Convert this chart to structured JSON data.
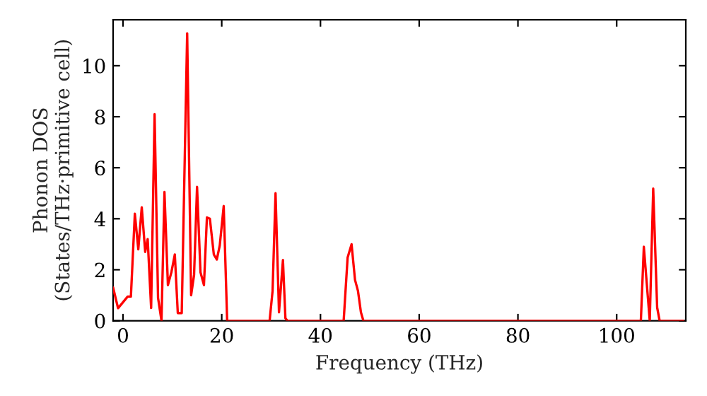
{
  "chart_data": {
    "type": "line",
    "xlabel": "Frequency (THz)",
    "ylabel": "Phonon DOS\n(States/THz·primitive cell)",
    "x": [
      -2,
      -1.0,
      0.95,
      1.6,
      2.4,
      3.1,
      3.8,
      4.5,
      5.0,
      5.7,
      6.4,
      7.1,
      7.8,
      8.4,
      9.1,
      9.8,
      10.5,
      11.1,
      11.9,
      13.0,
      13.8,
      14.4,
      15.0,
      15.7,
      16.4,
      17.0,
      17.6,
      18.4,
      19.0,
      19.6,
      20.4,
      21.1,
      29.7,
      30.3,
      30.9,
      31.6,
      32.4,
      32.9,
      33.3,
      44.7,
      45.5,
      46.3,
      47.0,
      47.6,
      48.2,
      48.7,
      104.9,
      105.5,
      106.7,
      107.4,
      108.2,
      108.7,
      113.5
    ],
    "series": [
      {
        "color": "#ff0000",
        "values": [
          1.3,
          0.49,
          0.95,
          0.95,
          4.2,
          2.8,
          4.45,
          2.7,
          3.2,
          0.5,
          8.1,
          0.9,
          0,
          5.05,
          1.4,
          1.9,
          2.6,
          0.3,
          0.3,
          11.27,
          1.0,
          1.8,
          5.25,
          1.9,
          1.4,
          4.05,
          4.0,
          2.6,
          2.4,
          2.95,
          4.5,
          0,
          0,
          1.17,
          5.0,
          0.33,
          2.38,
          0.1,
          0,
          0,
          2.48,
          3.0,
          1.6,
          1.17,
          0.33,
          0,
          0,
          2.9,
          0,
          5.18,
          0.52,
          0,
          0
        ]
      }
    ],
    "xlim": [
      -2,
      114
    ],
    "ylim": [
      0,
      11.8
    ],
    "xticks": [
      0,
      20,
      40,
      60,
      80,
      100
    ],
    "yticks": [
      0,
      2,
      4,
      6,
      8,
      10
    ],
    "grid": false
  }
}
